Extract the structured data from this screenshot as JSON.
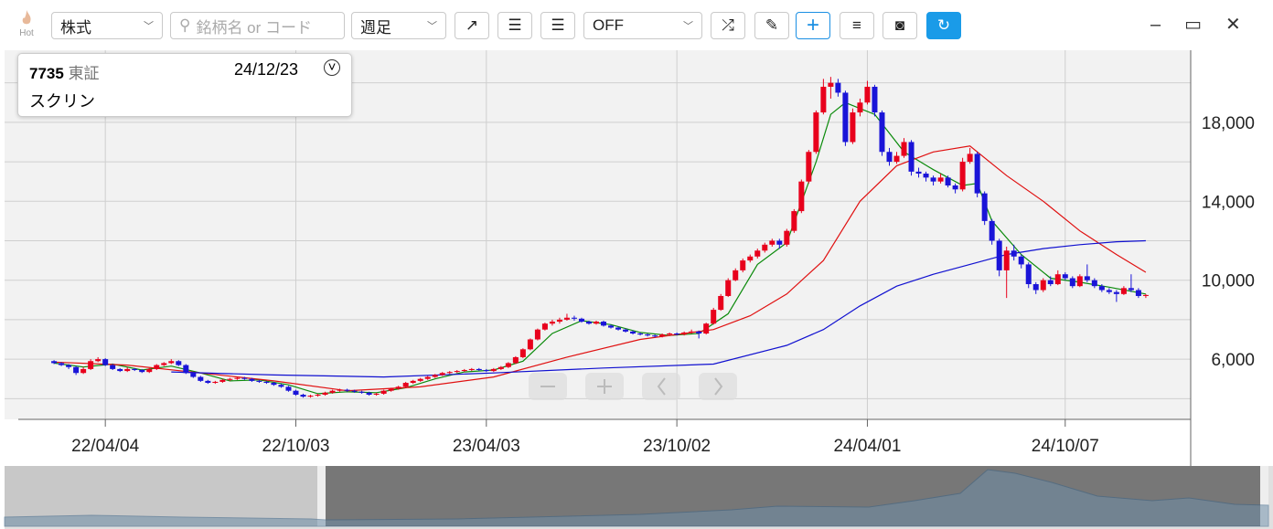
{
  "toolbar": {
    "hot": "Hot",
    "market": "株式",
    "search_placeholder": "銘柄名 or コード",
    "period": "週足",
    "overlay": "OFF"
  },
  "info": {
    "code": "7735",
    "exchange": "東証",
    "date": "24/12/23",
    "name": "スクリン"
  },
  "chart_data": {
    "type": "candlestick",
    "xlim": [
      -6.75,
      155.125
    ],
    "ylim": [
      2950,
      21650
    ],
    "xticks": [
      {
        "value": 7,
        "label": "22/04/04"
      },
      {
        "value": 33,
        "label": "22/10/03"
      },
      {
        "value": 59,
        "label": "23/04/03"
      },
      {
        "value": 85,
        "label": "23/10/02"
      },
      {
        "value": 111,
        "label": "24/04/01"
      },
      {
        "value": 138,
        "label": "24/10/07"
      }
    ],
    "yticks": [
      {
        "value": 6000,
        "label": "6,000"
      },
      {
        "value": 10000,
        "label": "10,000"
      },
      {
        "value": 14000,
        "label": "14,000"
      },
      {
        "value": 18000,
        "label": "18,000"
      }
    ],
    "ygrid": [
      4000,
      8000,
      12000,
      16000,
      20000
    ],
    "up_color": "#e8001c",
    "down_color": "#1a14d8",
    "ohlc": [
      [
        5900,
        5950,
        5750,
        5800
      ],
      [
        5800,
        5850,
        5650,
        5700
      ],
      [
        5700,
        5750,
        5500,
        5600
      ],
      [
        5600,
        5650,
        5200,
        5300
      ],
      [
        5300,
        5600,
        5250,
        5500
      ],
      [
        5500,
        6000,
        5450,
        5900
      ],
      [
        5900,
        6100,
        5850,
        6000
      ],
      [
        6000,
        6050,
        5650,
        5700
      ],
      [
        5700,
        5750,
        5450,
        5500
      ],
      [
        5500,
        5550,
        5350,
        5400
      ],
      [
        5400,
        5600,
        5350,
        5500
      ],
      [
        5500,
        5550,
        5400,
        5450
      ],
      [
        5450,
        5500,
        5300,
        5350
      ],
      [
        5350,
        5550,
        5300,
        5500
      ],
      [
        5500,
        5750,
        5450,
        5700
      ],
      [
        5700,
        5850,
        5650,
        5800
      ],
      [
        5800,
        6000,
        5750,
        5900
      ],
      [
        5900,
        5950,
        5650,
        5700
      ],
      [
        5700,
        5750,
        5250,
        5300
      ],
      [
        5300,
        5350,
        5050,
        5100
      ],
      [
        5100,
        5150,
        4850,
        4900
      ],
      [
        4900,
        4950,
        4750,
        4800
      ],
      [
        4800,
        4900,
        4750,
        4850
      ],
      [
        4850,
        5000,
        4800,
        4950
      ],
      [
        4950,
        5050,
        4900,
        5000
      ],
      [
        5000,
        5100,
        4950,
        5050
      ],
      [
        5050,
        5100,
        4950,
        5000
      ],
      [
        5000,
        5050,
        4850,
        4900
      ],
      [
        4900,
        4950,
        4800,
        4850
      ],
      [
        4850,
        4900,
        4750,
        4800
      ],
      [
        4800,
        4850,
        4650,
        4700
      ],
      [
        4700,
        4750,
        4550,
        4600
      ],
      [
        4600,
        4650,
        4350,
        4400
      ],
      [
        4400,
        4450,
        4150,
        4200
      ],
      [
        4200,
        4250,
        4050,
        4100
      ],
      [
        4100,
        4200,
        4050,
        4150
      ],
      [
        4150,
        4250,
        4100,
        4200
      ],
      [
        4200,
        4350,
        4150,
        4300
      ],
      [
        4300,
        4450,
        4250,
        4400
      ],
      [
        4400,
        4500,
        4350,
        4450
      ],
      [
        4450,
        4500,
        4350,
        4400
      ],
      [
        4400,
        4450,
        4300,
        4350
      ],
      [
        4350,
        4400,
        4250,
        4300
      ],
      [
        4300,
        4350,
        4150,
        4200
      ],
      [
        4200,
        4300,
        4150,
        4250
      ],
      [
        4250,
        4450,
        4200,
        4400
      ],
      [
        4400,
        4550,
        4350,
        4500
      ],
      [
        4500,
        4650,
        4450,
        4600
      ],
      [
        4600,
        4850,
        4550,
        4800
      ],
      [
        4800,
        4950,
        4750,
        4900
      ],
      [
        4900,
        5050,
        4850,
        5000
      ],
      [
        5000,
        5150,
        4950,
        5100
      ],
      [
        5100,
        5250,
        5050,
        5200
      ],
      [
        5200,
        5350,
        5150,
        5300
      ],
      [
        5300,
        5400,
        5250,
        5350
      ],
      [
        5350,
        5450,
        5300,
        5400
      ],
      [
        5400,
        5500,
        5350,
        5450
      ],
      [
        5450,
        5550,
        5400,
        5500
      ],
      [
        5500,
        5550,
        5400,
        5450
      ],
      [
        5450,
        5500,
        5350,
        5400
      ],
      [
        5400,
        5550,
        5350,
        5500
      ],
      [
        5500,
        5650,
        5450,
        5600
      ],
      [
        5600,
        5850,
        5550,
        5800
      ],
      [
        5800,
        6150,
        5750,
        6100
      ],
      [
        6100,
        6550,
        6050,
        6500
      ],
      [
        6500,
        7050,
        6450,
        7000
      ],
      [
        7000,
        7550,
        6950,
        7500
      ],
      [
        7500,
        7850,
        7450,
        7800
      ],
      [
        7800,
        8000,
        7700,
        7900
      ],
      [
        7900,
        8100,
        7800,
        8000
      ],
      [
        8000,
        8300,
        7950,
        8100
      ],
      [
        8100,
        8200,
        7950,
        8050
      ],
      [
        8050,
        8100,
        7850,
        7900
      ],
      [
        7900,
        7950,
        7750,
        7800
      ],
      [
        7800,
        7950,
        7750,
        7900
      ],
      [
        7900,
        7950,
        7650,
        7700
      ],
      [
        7700,
        7750,
        7550,
        7600
      ],
      [
        7600,
        7650,
        7450,
        7500
      ],
      [
        7500,
        7550,
        7350,
        7400
      ],
      [
        7400,
        7450,
        7250,
        7300
      ],
      [
        7300,
        7350,
        7200,
        7250
      ],
      [
        7250,
        7300,
        7150,
        7200
      ],
      [
        7200,
        7250,
        7100,
        7150
      ],
      [
        7150,
        7300,
        7100,
        7250
      ],
      [
        7250,
        7350,
        7200,
        7300
      ],
      [
        7300,
        7350,
        7200,
        7250
      ],
      [
        7250,
        7400,
        7200,
        7350
      ],
      [
        7350,
        7500,
        7300,
        7400
      ],
      [
        7400,
        7450,
        7050,
        7300
      ],
      [
        7300,
        7850,
        7250,
        7800
      ],
      [
        7800,
        8600,
        7750,
        8500
      ],
      [
        8500,
        9300,
        8450,
        9200
      ],
      [
        9200,
        10100,
        9150,
        10000
      ],
      [
        10000,
        10600,
        9950,
        10500
      ],
      [
        10500,
        11100,
        10400,
        11000
      ],
      [
        11000,
        11300,
        10900,
        11200
      ],
      [
        11200,
        11600,
        11100,
        11500
      ],
      [
        11500,
        11900,
        11400,
        11800
      ],
      [
        11800,
        12100,
        11700,
        12000
      ],
      [
        12000,
        12100,
        11600,
        11800
      ],
      [
        11800,
        12600,
        11700,
        12500
      ],
      [
        12500,
        13600,
        12400,
        13500
      ],
      [
        13500,
        15100,
        13400,
        15000
      ],
      [
        15000,
        16600,
        14900,
        16500
      ],
      [
        16500,
        18600,
        16400,
        18500
      ],
      [
        18500,
        20200,
        18400,
        19800
      ],
      [
        19800,
        20300,
        19200,
        20000
      ],
      [
        20000,
        20200,
        19300,
        19500
      ],
      [
        19500,
        19600,
        16800,
        17000
      ],
      [
        17000,
        18700,
        16900,
        18500
      ],
      [
        18500,
        19200,
        18300,
        19000
      ],
      [
        19000,
        20100,
        18900,
        19800
      ],
      [
        19800,
        19900,
        18300,
        18500
      ],
      [
        18500,
        18600,
        16300,
        16500
      ],
      [
        16500,
        16700,
        15800,
        16000
      ],
      [
        16000,
        16500,
        15900,
        16300
      ],
      [
        16300,
        17200,
        16200,
        17000
      ],
      [
        17000,
        17100,
        15300,
        15500
      ],
      [
        15500,
        15700,
        15200,
        15400
      ],
      [
        15400,
        15500,
        15000,
        15200
      ],
      [
        15200,
        15300,
        14800,
        15000
      ],
      [
        15000,
        15400,
        14900,
        15200
      ],
      [
        15200,
        15300,
        14700,
        14800
      ],
      [
        14800,
        14900,
        14400,
        14600
      ],
      [
        14600,
        16200,
        14500,
        16000
      ],
      [
        16000,
        16700,
        15900,
        16400
      ],
      [
        16400,
        16500,
        14200,
        14400
      ],
      [
        14400,
        14500,
        12800,
        13000
      ],
      [
        13000,
        13100,
        11800,
        12000
      ],
      [
        12000,
        12100,
        10200,
        10500
      ],
      [
        10500,
        11700,
        9100,
        11500
      ],
      [
        11500,
        11800,
        11000,
        11200
      ],
      [
        11200,
        11300,
        10600,
        10800
      ],
      [
        10800,
        10900,
        9600,
        9800
      ],
      [
        9800,
        9900,
        9300,
        9500
      ],
      [
        9500,
        10100,
        9400,
        10000
      ],
      [
        10000,
        10200,
        9700,
        9800
      ],
      [
        9800,
        10500,
        9750,
        10300
      ],
      [
        10300,
        10400,
        10000,
        10100
      ],
      [
        10100,
        10200,
        9600,
        9700
      ],
      [
        9700,
        10300,
        9650,
        10200
      ],
      [
        10200,
        10800,
        9900,
        10000
      ],
      [
        10000,
        10100,
        9600,
        9700
      ],
      [
        9700,
        9800,
        9400,
        9500
      ],
      [
        9500,
        9600,
        9300,
        9400
      ],
      [
        9400,
        9500,
        8900,
        9300
      ],
      [
        9300,
        9700,
        9250,
        9600
      ],
      [
        9600,
        10300,
        9400,
        9500
      ],
      [
        9500,
        9600,
        9100,
        9200
      ],
      [
        9200,
        9300,
        9100,
        9250
      ]
    ],
    "lines": [
      {
        "color": "#0a8a0a",
        "x": [
          0,
          4,
          8,
          12,
          16,
          20,
          24,
          28,
          32,
          36,
          40,
          44,
          48,
          52,
          56,
          60,
          64,
          68,
          72,
          76,
          80,
          84,
          88,
          92,
          96,
          100,
          104,
          106,
          108,
          112,
          116,
          120,
          124,
          126,
          128,
          132,
          136,
          140,
          144,
          149
        ],
        "values": [
          5800,
          5600,
          5750,
          5450,
          5650,
          5300,
          4900,
          4950,
          4700,
          4250,
          4350,
          4300,
          4550,
          5000,
          5350,
          5450,
          5900,
          7300,
          7950,
          7750,
          7350,
          7200,
          7300,
          8300,
          10800,
          11900,
          16000,
          18400,
          19000,
          18400,
          16500,
          15600,
          14800,
          14900,
          13000,
          11300,
          10100,
          9900,
          9650,
          9300
        ]
      },
      {
        "color": "#e01010",
        "x": [
          0,
          10,
          20,
          30,
          40,
          50,
          60,
          70,
          80,
          90,
          95,
          100,
          105,
          110,
          115,
          120,
          125,
          130,
          135,
          140,
          145,
          149
        ],
        "values": [
          5850,
          5700,
          5300,
          4900,
          4400,
          4600,
          5100,
          6100,
          7000,
          7500,
          8200,
          9300,
          11000,
          14000,
          15800,
          16500,
          16800,
          15300,
          14000,
          12500,
          11300,
          10400
        ]
      },
      {
        "color": "#1010d0",
        "x": [
          16,
          30,
          45,
          60,
          75,
          90,
          100,
          105,
          110,
          115,
          120,
          125,
          130,
          135,
          140,
          145,
          149
        ],
        "values": [
          5350,
          5200,
          5100,
          5300,
          5550,
          5750,
          6700,
          7500,
          8700,
          9700,
          10300,
          10800,
          11300,
          11600,
          11800,
          11950,
          12000
        ]
      }
    ]
  }
}
